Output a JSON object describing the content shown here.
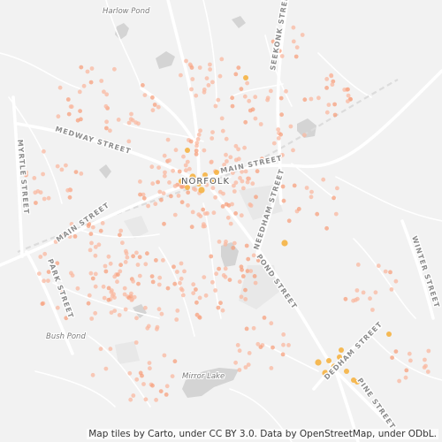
{
  "map": {
    "town": "NORFOLK",
    "streets": [
      "MEDWAY STREET",
      "MAIN STREET",
      "MAIN STREET",
      "MYRTLE STREET",
      "PARK STREET",
      "SEEKONK STREET",
      "NEEDHAM STREET",
      "POND STREET",
      "DEDHAM STREET",
      "PINE STREET",
      "WINTER STREET"
    ],
    "water": [
      "Harlow Pond",
      "Bush Pond",
      "Mirror Lake"
    ],
    "attribution": "Map tiles by Carto, under CC BY 3.0. Data by OpenStreetMap, under ODbL.",
    "colors": {
      "background": "#f2f2f2",
      "road": "#ffffff",
      "water": "#d4d4d4",
      "rail": "#dcdcdc",
      "dot_light": "#f9b8a0",
      "dot_mid": "#f7a07e",
      "dot_hot": "#f5b342"
    }
  }
}
